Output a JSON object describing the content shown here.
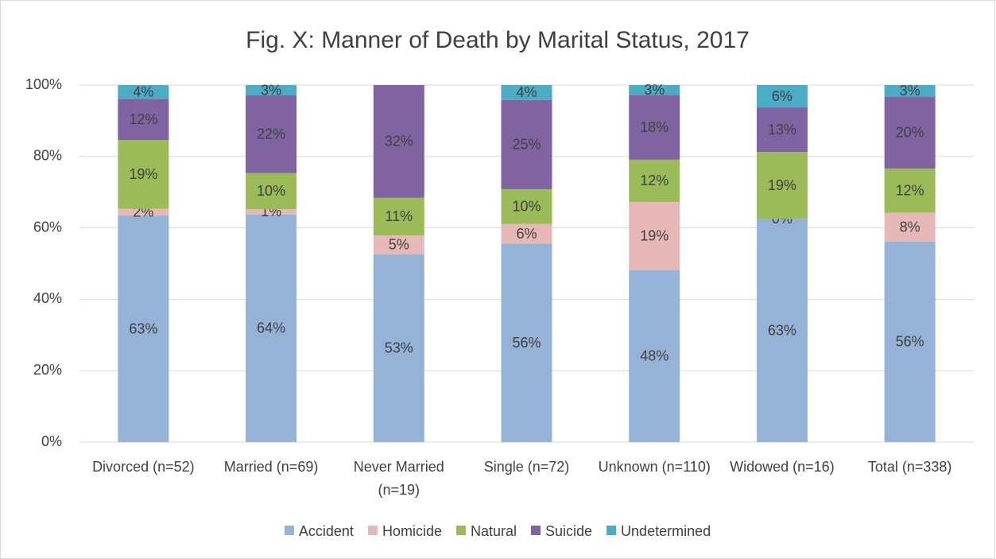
{
  "chart_data": {
    "type": "stacked_bar",
    "title": "Fig. X: Manner of Death by Marital Status, 2017",
    "categories": [
      "Divorced (n=52)",
      "Married (n=69)",
      "Never Married (n=19)",
      "Single (n=72)",
      "Unknown (n=110)",
      "Widowed (n=16)",
      "Total (n=338)"
    ],
    "series": [
      {
        "name": "Accident",
        "color": "#95b3d7",
        "values": [
          63.46,
          63.77,
          52.63,
          55.56,
          48.18,
          62.5,
          56.21
        ],
        "value_labels": [
          "63%",
          "64%",
          "53%",
          "56%",
          "48%",
          "63%",
          "56%"
        ]
      },
      {
        "name": "Homicide",
        "color": "#e6b9b8",
        "values": [
          1.92,
          1.45,
          5.26,
          5.56,
          19.09,
          0,
          7.99
        ],
        "value_labels": [
          "2%",
          "1%",
          "5%",
          "6%",
          "19%",
          "0%",
          "8%"
        ]
      },
      {
        "name": "Natural",
        "color": "#9bbb59",
        "values": [
          19.23,
          10.14,
          10.53,
          9.72,
          11.82,
          18.75,
          12.43
        ],
        "value_labels": [
          "19%",
          "10%",
          "11%",
          "10%",
          "12%",
          "19%",
          "12%"
        ]
      },
      {
        "name": "Suicide",
        "color": "#8064a2",
        "values": [
          11.54,
          21.74,
          31.58,
          25,
          18.18,
          12.5,
          20.12
        ],
        "value_labels": [
          "12%",
          "22%",
          "32%",
          "25%",
          "18%",
          "13%",
          "20%"
        ]
      },
      {
        "name": "Undetermined",
        "color": "#4bacc6",
        "values": [
          3.85,
          2.9,
          null,
          4.17,
          2.73,
          6.25,
          3.25
        ],
        "value_labels": [
          "4%",
          "3%",
          null,
          "4%",
          "3%",
          "6%",
          "3%"
        ]
      }
    ],
    "ylim": [
      0,
      100
    ],
    "yticks": [
      {
        "value": 0,
        "label": "0%"
      },
      {
        "value": 20,
        "label": "20%"
      },
      {
        "value": 40,
        "label": "40%"
      },
      {
        "value": 60,
        "label": "60%"
      },
      {
        "value": 80,
        "label": "80%"
      },
      {
        "value": 100,
        "label": "100%"
      }
    ],
    "grid": true,
    "legend": "bottom"
  }
}
